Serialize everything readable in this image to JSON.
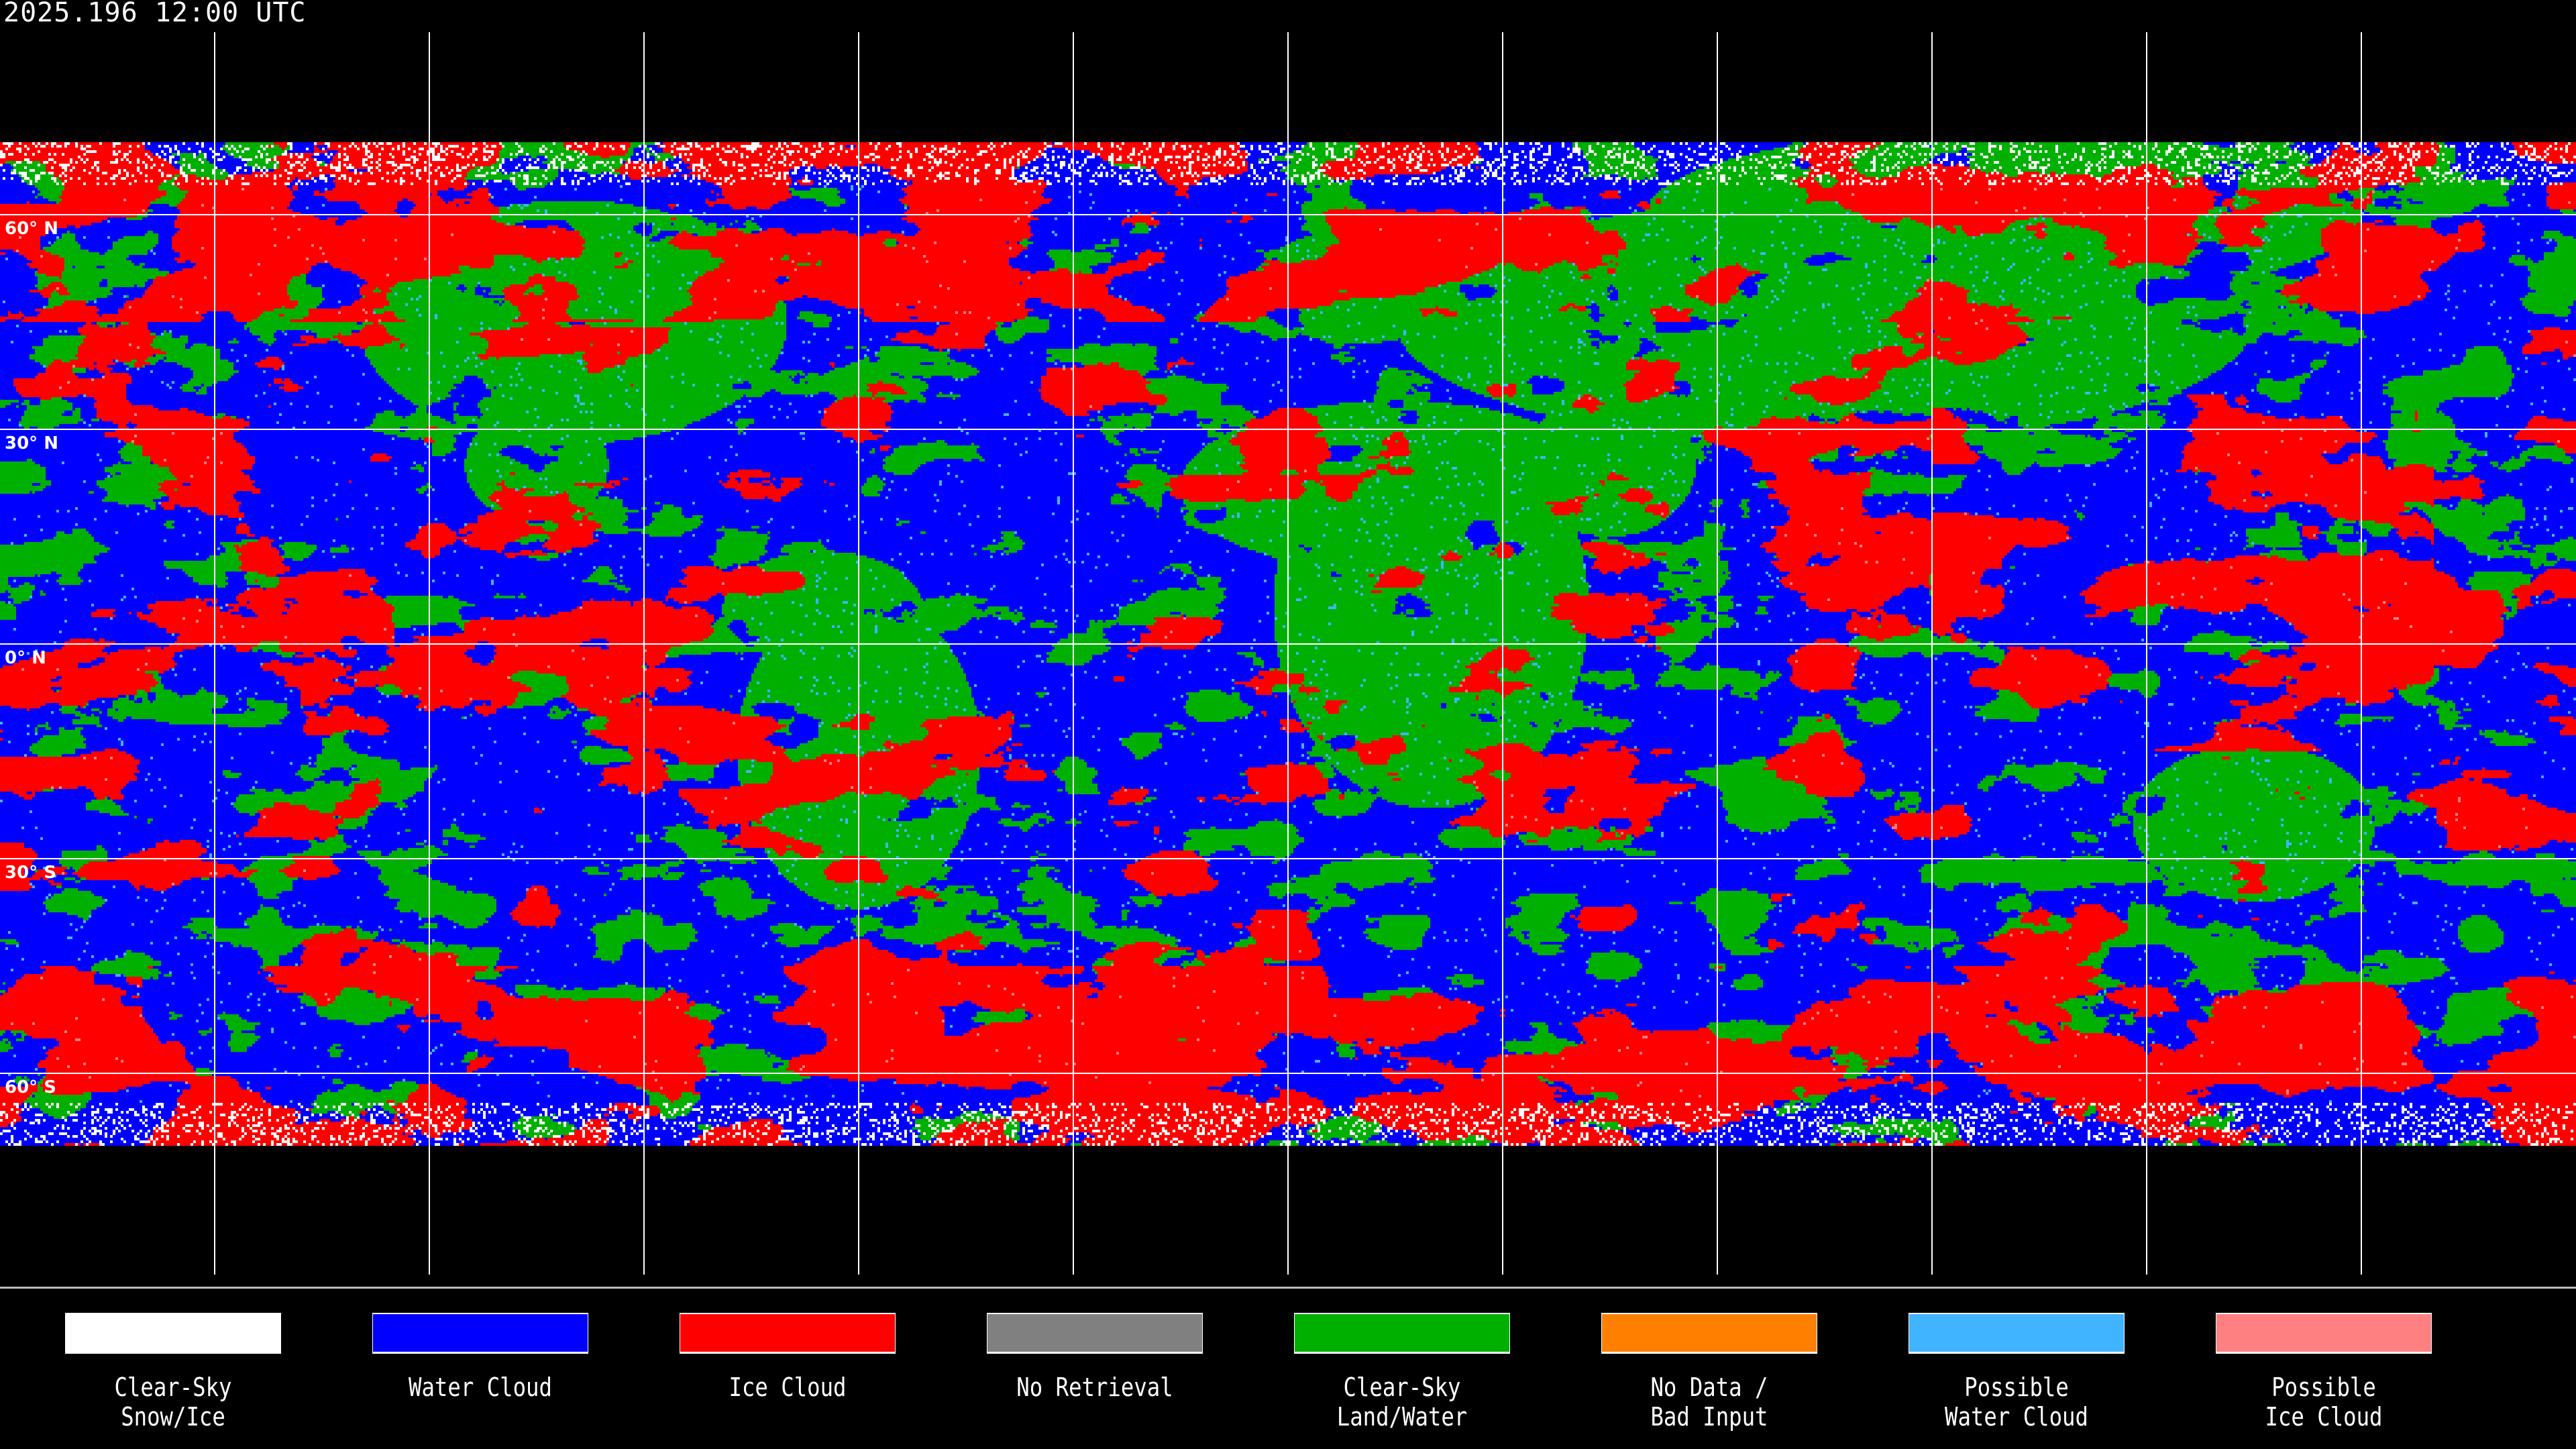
{
  "header": {
    "title": "2025.196 12:00 UTC"
  },
  "map": {
    "projection": "equirectangular",
    "latitude_labels": [
      "60° N",
      "30° N",
      "0° N",
      "30° S",
      "60° S"
    ],
    "grid_spacing_degrees": 30,
    "coastlines": "white"
  },
  "legend": [
    {
      "line1": "Clear-Sky",
      "line2": "Snow/Ice",
      "color": "#ffffff"
    },
    {
      "line1": "Water Cloud",
      "line2": "",
      "color": "#0000ff"
    },
    {
      "line1": "Ice Cloud",
      "line2": "",
      "color": "#ff0000"
    },
    {
      "line1": "No Retrieval",
      "line2": "",
      "color": "#808080"
    },
    {
      "line1": "Clear-Sky",
      "line2": "Land/Water",
      "color": "#00b000"
    },
    {
      "line1": "No Data /",
      "line2": "Bad Input",
      "color": "#ff8000"
    },
    {
      "line1": "Possible",
      "line2": "Water Cloud",
      "color": "#40b4ff"
    },
    {
      "line1": "Possible",
      "line2": "Ice Cloud",
      "color": "#ff8080"
    }
  ]
}
